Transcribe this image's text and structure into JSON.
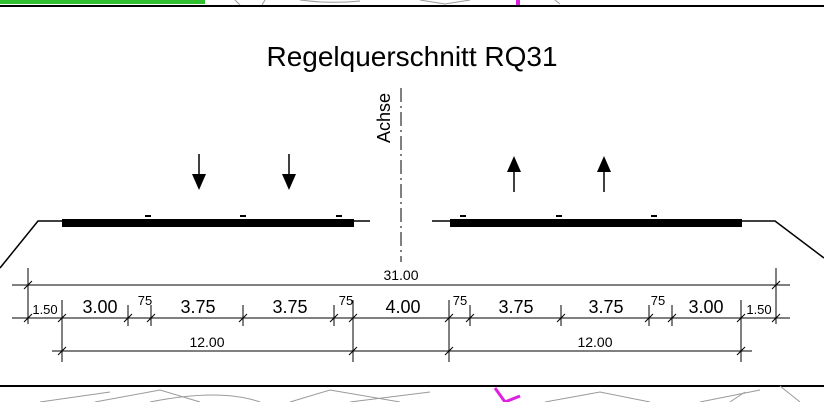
{
  "title": "Regelquerschnitt  RQ31",
  "axis_label": "Achse",
  "colors": {
    "line": "#000000",
    "background": "#ffffff",
    "highlight_green": "#2fbf2f",
    "highlight_magenta": "#e020e0",
    "background_sketch": "#9a9a9a"
  },
  "total_width": "31.00",
  "lane_dimensions": [
    "1.50",
    "3.00",
    "75",
    "3.75",
    "3.75",
    "75",
    "4.00",
    "75",
    "3.75",
    "3.75",
    "75",
    "3.00",
    "1.50"
  ],
  "carriageway_dimensions": [
    "12.00",
    "12.00"
  ],
  "traffic_arrows": {
    "left_carriageway": "down",
    "right_carriageway": "up"
  }
}
